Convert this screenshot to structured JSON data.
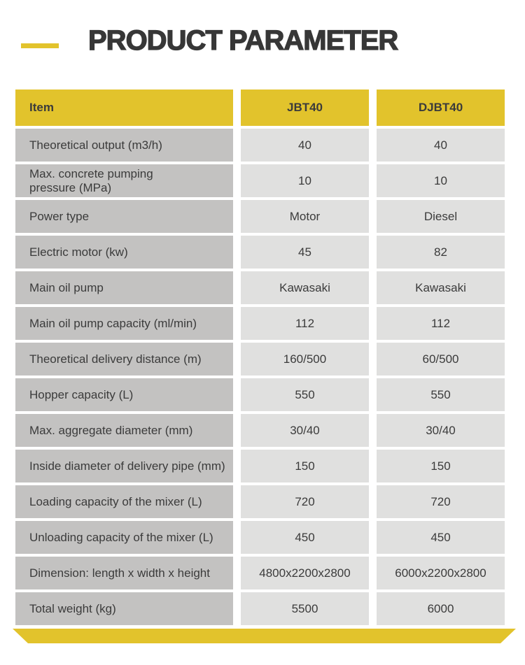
{
  "page": {
    "title": "PRODUCT PARAMETER"
  },
  "colors": {
    "accent_yellow": "#E2C32C",
    "item_column_gray": "#C3C2C1",
    "value_column_gray": "#E0E0DF",
    "text_dark": "#3B3B3B"
  },
  "table": {
    "columns": [
      "Item",
      "JBT40",
      "DJBT40"
    ],
    "rows": [
      {
        "label": "Theoretical output (m3/h)",
        "values": [
          "40",
          "40"
        ]
      },
      {
        "label": "Max. concrete pumping\n pressure (MPa)",
        "values": [
          "10",
          "10"
        ]
      },
      {
        "label": "Power type",
        "values": [
          "Motor",
          "Diesel"
        ]
      },
      {
        "label": "Electric motor (kw)",
        "values": [
          "45",
          "82"
        ]
      },
      {
        "label": "Main oil pump",
        "values": [
          "Kawasaki",
          "Kawasaki"
        ]
      },
      {
        "label": "Main oil pump capacity (ml/min)",
        "values": [
          "112",
          "112"
        ]
      },
      {
        "label": "Theoretical delivery distance (m)",
        "values": [
          "160/500",
          "60/500"
        ]
      },
      {
        "label": "Hopper capacity (L)",
        "values": [
          "550",
          "550"
        ]
      },
      {
        "label": "Max. aggregate diameter (mm)",
        "values": [
          "30/40",
          "30/40"
        ]
      },
      {
        "label": "Inside diameter of delivery pipe (mm)",
        "values": [
          "150",
          "150"
        ]
      },
      {
        "label": "Loading capacity of the mixer (L)",
        "values": [
          "720",
          "720"
        ]
      },
      {
        "label": "Unloading capacity of the mixer (L)",
        "values": [
          "450",
          "450"
        ]
      },
      {
        "label": "Dimension: length x width x height",
        "values": [
          "4800x2200x2800",
          "6000x2200x2800"
        ]
      },
      {
        "label": "Total weight (kg)",
        "values": [
          "5500",
          "6000"
        ]
      }
    ]
  }
}
